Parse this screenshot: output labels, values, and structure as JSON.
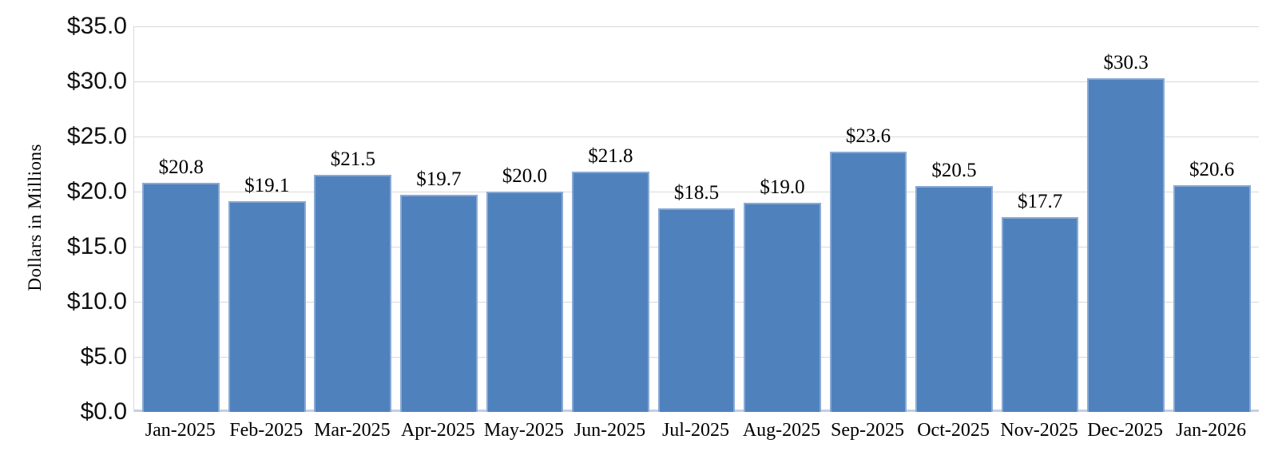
{
  "chart_data": {
    "type": "bar",
    "title": "",
    "xlabel": "",
    "ylabel": "Dollars in Millions",
    "categories": [
      "Jan-2025",
      "Feb-2025",
      "Mar-2025",
      "Apr-2025",
      "May-2025",
      "Jun-2025",
      "Jul-2025",
      "Aug-2025",
      "Sep-2025",
      "Oct-2025",
      "Nov-2025",
      "Dec-2025",
      "Jan-2026"
    ],
    "values": [
      20.8,
      19.1,
      21.5,
      19.7,
      20.0,
      21.8,
      18.5,
      19.0,
      23.6,
      20.5,
      17.7,
      30.3,
      20.6
    ],
    "bar_labels": [
      "$20.8",
      "$19.1",
      "$21.5",
      "$19.7",
      "$20.0",
      "$21.8",
      "$18.5",
      "$19.0",
      "$23.6",
      "$20.5",
      "$17.7",
      "$30.3",
      "$20.6"
    ],
    "ylim": [
      0,
      35
    ],
    "ytick_values": [
      35,
      30,
      25,
      20,
      15,
      10,
      5,
      0
    ],
    "ytick_labels": [
      "$35.0",
      "$30.0",
      "$25.0",
      "$20.0",
      "$15.0",
      "$10.0",
      "$5.0",
      "$0.0"
    ],
    "grid": true,
    "legend": false,
    "colors": {
      "bar_fill": "#4f81bd",
      "bar_edge": "#89aad5",
      "gridline": "#d9d9d9",
      "axis_line": "#c4cfe0",
      "text": "#000000",
      "background": "#ffffff"
    }
  }
}
